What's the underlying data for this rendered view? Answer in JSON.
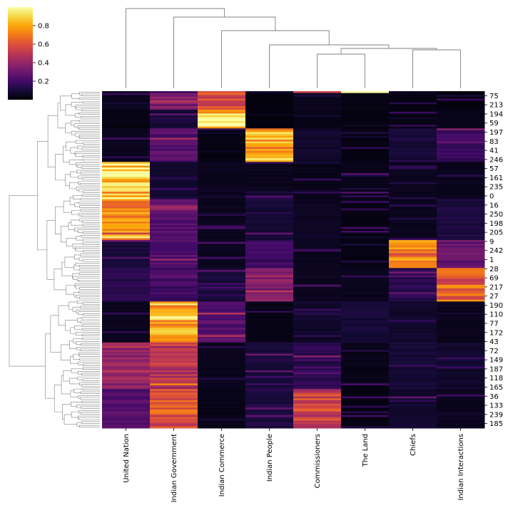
{
  "chart_data": {
    "type": "heatmap",
    "title": "",
    "xlabel": "",
    "ylabel": "",
    "columns": [
      "United Nation",
      "Indian Government",
      "Indian Commerce",
      "Indian People",
      "Commissioners",
      "The Land",
      "Chiefs",
      "Indian Interactions"
    ],
    "row_tick_labels": [
      "75",
      "213",
      "194",
      "59",
      "197",
      "83",
      "41",
      "246",
      "57",
      "161",
      "235",
      "0",
      "16",
      "250",
      "198",
      "205",
      "9",
      "242",
      "1",
      "28",
      "69",
      "217",
      "27",
      "190",
      "110",
      "77",
      "172",
      "43",
      "72",
      "149",
      "187",
      "118",
      "165",
      "36",
      "133",
      "239",
      "185"
    ],
    "n_rows": 181,
    "colorbar": {
      "ticks": [
        0.2,
        0.4,
        0.6,
        0.8
      ],
      "tick_labels": [
        "0.2",
        "0.4",
        "0.6",
        "0.8"
      ],
      "range": [
        0.0,
        1.0
      ],
      "colormap": "inferno"
    },
    "approx_blocks": [
      {
        "rows": [
          0,
          1
        ],
        "values": [
          0.05,
          0.2,
          0.55,
          0.1,
          0.5,
          0.95,
          0.05,
          0.02
        ]
      },
      {
        "rows": [
          1,
          10
        ],
        "values": [
          0.05,
          0.35,
          0.6,
          0.02,
          0.05,
          0.03,
          0.03,
          0.02
        ]
      },
      {
        "rows": [
          10,
          20
        ],
        "values": [
          0.03,
          0.1,
          0.95,
          0.02,
          0.04,
          0.03,
          0.03,
          0.04
        ]
      },
      {
        "rows": [
          20,
          38
        ],
        "values": [
          0.05,
          0.25,
          0.03,
          0.8,
          0.08,
          0.03,
          0.1,
          0.2
        ]
      },
      {
        "rows": [
          38,
          58
        ],
        "values": [
          0.9,
          0.08,
          0.05,
          0.05,
          0.04,
          0.04,
          0.05,
          0.05
        ]
      },
      {
        "rows": [
          58,
          80
        ],
        "values": [
          0.7,
          0.25,
          0.05,
          0.1,
          0.06,
          0.03,
          0.05,
          0.12
        ]
      },
      {
        "rows": [
          80,
          95
        ],
        "values": [
          0.1,
          0.25,
          0.05,
          0.2,
          0.05,
          0.03,
          0.7,
          0.3
        ]
      },
      {
        "rows": [
          95,
          113
        ],
        "values": [
          0.15,
          0.2,
          0.1,
          0.35,
          0.05,
          0.05,
          0.15,
          0.65
        ]
      },
      {
        "rows": [
          113,
          135
        ],
        "values": [
          0.05,
          0.85,
          0.25,
          0.03,
          0.08,
          0.1,
          0.08,
          0.05
        ]
      },
      {
        "rows": [
          135,
          160
        ],
        "values": [
          0.4,
          0.5,
          0.05,
          0.1,
          0.15,
          0.04,
          0.1,
          0.08
        ]
      },
      {
        "rows": [
          160,
          181
        ],
        "values": [
          0.25,
          0.6,
          0.04,
          0.12,
          0.55,
          0.03,
          0.08,
          0.05
        ]
      }
    ]
  }
}
